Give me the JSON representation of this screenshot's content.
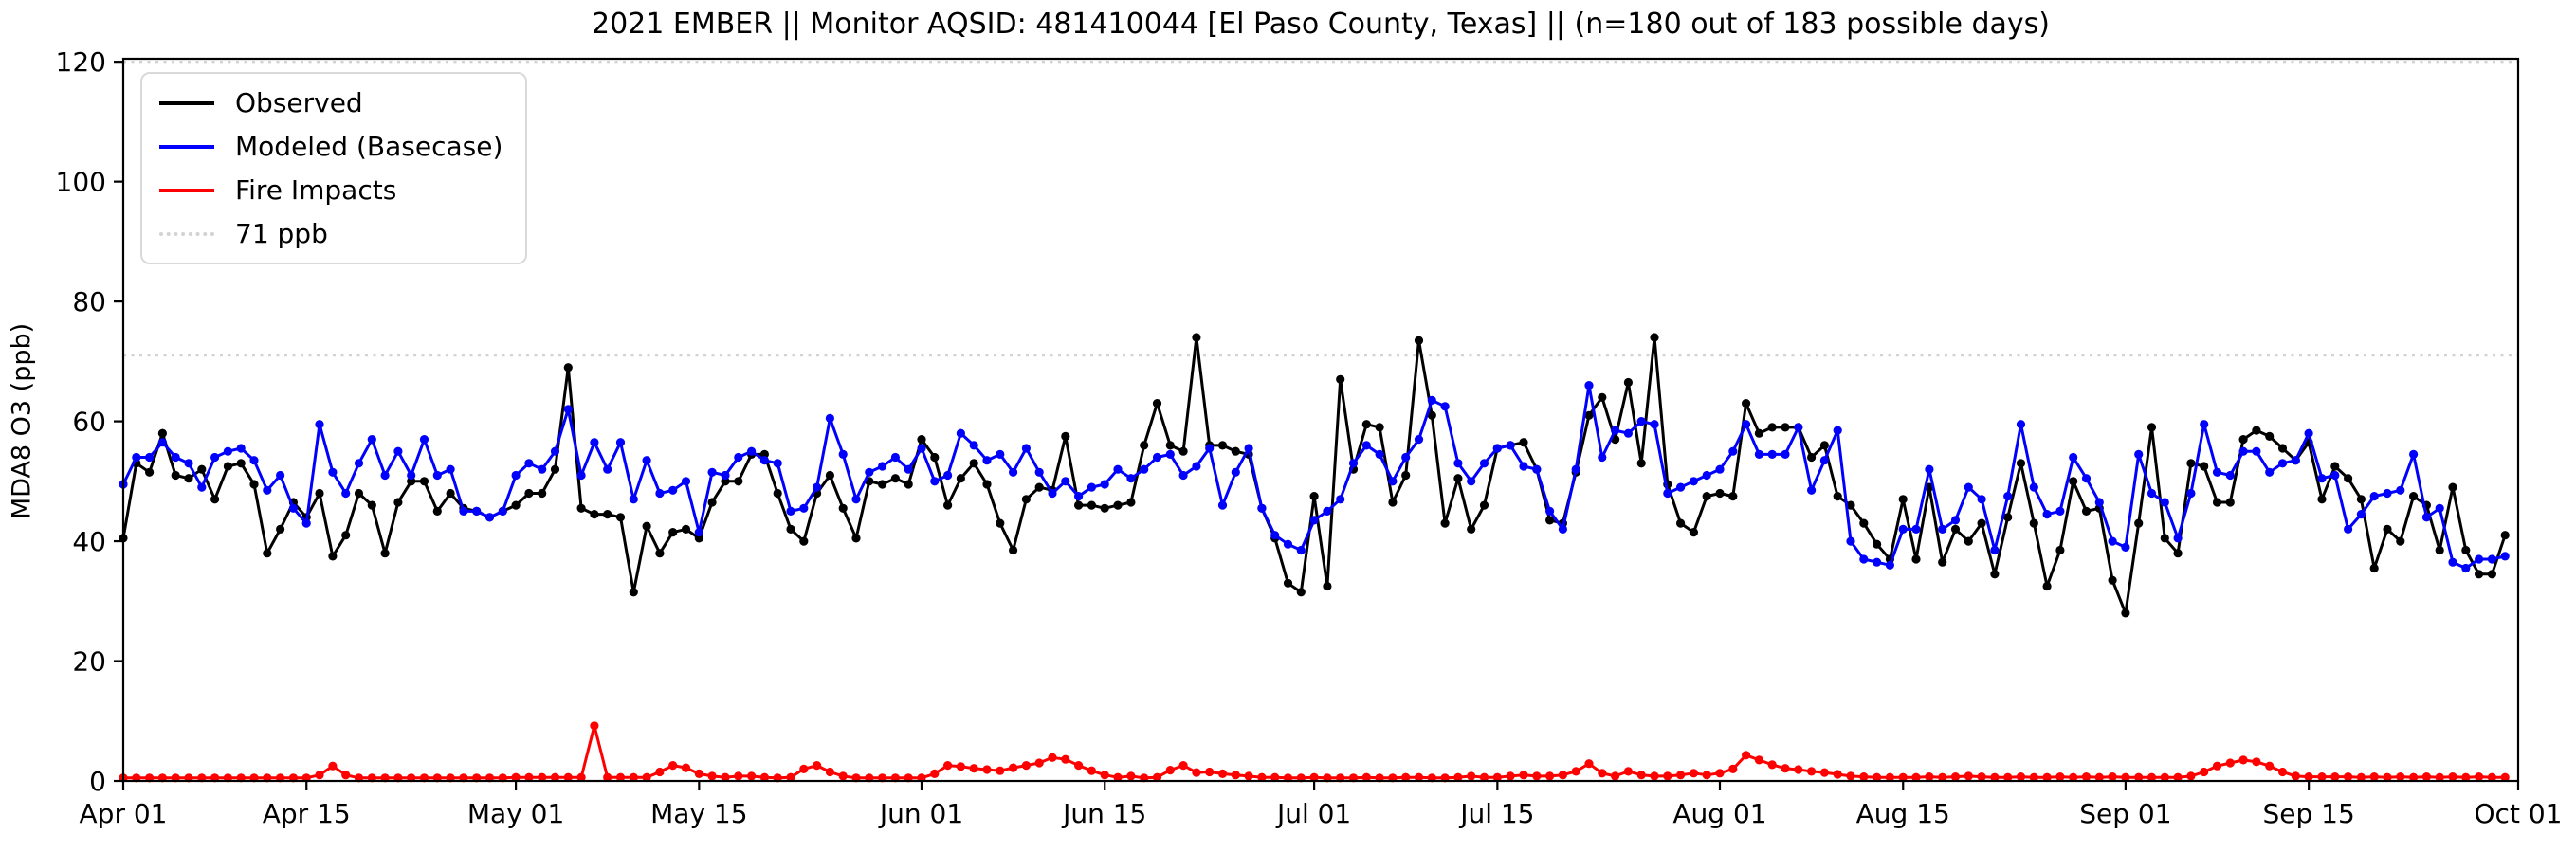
{
  "title": "2021 EMBER || Monitor AQSID: 481410044 [El Paso County, Texas] || (n=180 out of 183 possible days)",
  "axes": {
    "ylabel": "MDA8 O3 (ppb)",
    "yticks": [
      0,
      20,
      40,
      60,
      80,
      100,
      120
    ],
    "xticks": [
      {
        "label": "Apr 01",
        "day": 0
      },
      {
        "label": "Apr 15",
        "day": 14
      },
      {
        "label": "May 01",
        "day": 30
      },
      {
        "label": "May 15",
        "day": 44
      },
      {
        "label": "Jun 01",
        "day": 61
      },
      {
        "label": "Jun 15",
        "day": 75
      },
      {
        "label": "Jul 01",
        "day": 91
      },
      {
        "label": "Jul 15",
        "day": 105
      },
      {
        "label": "Aug 01",
        "day": 122
      },
      {
        "label": "Aug 15",
        "day": 136
      },
      {
        "label": "Sep 01",
        "day": 153
      },
      {
        "label": "Sep 15",
        "day": 167
      },
      {
        "label": "Oct 01",
        "day": 183
      }
    ]
  },
  "legend": {
    "items": [
      {
        "label": "Observed",
        "color": "#000000",
        "style": "solid"
      },
      {
        "label": "Modeled (Basecase)",
        "color": "#0000ff",
        "style": "solid"
      },
      {
        "label": "Fire Impacts",
        "color": "#ff0000",
        "style": "solid"
      },
      {
        "label": "71 ppb",
        "color": "#d3d3d3",
        "style": "dotted"
      }
    ]
  },
  "chart_data": {
    "type": "line",
    "title": "2021 EMBER || Monitor AQSID: 481410044 [El Paso County, Texas] || (n=180 out of 183 possible days)",
    "xlabel": "",
    "ylabel": "MDA8 O3 (ppb)",
    "x_start_date": "2021-04-01",
    "x_end_date": "2021-10-01",
    "x_unit": "days since Apr 01",
    "n_days": 183,
    "ylim": [
      0,
      120.5
    ],
    "grid": false,
    "legend_position": "upper left",
    "threshold_lines": [
      {
        "value": 71,
        "label": "71 ppb",
        "color": "#d3d3d3",
        "style": "dotted"
      },
      {
        "value": 120,
        "label": "",
        "color": "#d3d3d3",
        "style": "dotted"
      }
    ],
    "series": [
      {
        "name": "Observed",
        "color": "#000000",
        "marker": "circle",
        "values": [
          40.5,
          53,
          51.5,
          58,
          51,
          50.5,
          52,
          47,
          52.5,
          53,
          49.5,
          38,
          42,
          46.5,
          44,
          48,
          37.5,
          41,
          48,
          46,
          38,
          46.5,
          50,
          50,
          45,
          48,
          45.5,
          45,
          44,
          45,
          46,
          48,
          48,
          52,
          69,
          45.5,
          44.5,
          44.5,
          44,
          31.5,
          42.5,
          38,
          41.5,
          42,
          40.5,
          46.5,
          50,
          50,
          54.5,
          54.5,
          48,
          42,
          40,
          48,
          51,
          45.5,
          40.5,
          50,
          49.5,
          50.5,
          49.5,
          57,
          54,
          46,
          50.5,
          53,
          49.5,
          43,
          38.5,
          47,
          49,
          48.5,
          57.5,
          46,
          46,
          45.5,
          46,
          46.5,
          56,
          63,
          56,
          55,
          74,
          56,
          56,
          55,
          54.5,
          45.5,
          40.5,
          33,
          31.5,
          47.5,
          32.5,
          67,
          52,
          59.5,
          59,
          46.5,
          51,
          73.5,
          61,
          43,
          50.5,
          42,
          46,
          55.5,
          56,
          56.5,
          52,
          43.5,
          43,
          51.5,
          61,
          64,
          57,
          66.5,
          53,
          74,
          49.5,
          43,
          41.5,
          47.5,
          48,
          47.5,
          63,
          58,
          59,
          59,
          59,
          54,
          56,
          47.5,
          46,
          43,
          39.5,
          37,
          47,
          37,
          49,
          36.5,
          42,
          40,
          43,
          34.5,
          44,
          53,
          43,
          32.5,
          38.5,
          50,
          45,
          45.5,
          33.5,
          28,
          43,
          59,
          40.5,
          38,
          53,
          52.5,
          46.5,
          46.5,
          57,
          58.5,
          57.5,
          55.5,
          53.5,
          56.5,
          47,
          52.5,
          50.5,
          47,
          35.5,
          42,
          40,
          47.5,
          46,
          38.5,
          49,
          38.5,
          34.5,
          34.5,
          41
        ]
      },
      {
        "name": "Modeled (Basecase)",
        "color": "#0000ff",
        "marker": "circle",
        "values": [
          49.5,
          54,
          54,
          56.5,
          54,
          53,
          49,
          54,
          55,
          55.5,
          53.5,
          48.5,
          51,
          45.5,
          43,
          59.5,
          51.5,
          48,
          53,
          57,
          51,
          55,
          51,
          57,
          51,
          52,
          45,
          45,
          44,
          45,
          51,
          53,
          52,
          55,
          62,
          51,
          56.5,
          52,
          56.5,
          47,
          53.5,
          48,
          48.5,
          50,
          41.5,
          51.5,
          51,
          54,
          55,
          53.5,
          53,
          45,
          45.5,
          49,
          60.5,
          54.5,
          47,
          51.5,
          52.5,
          54,
          52,
          55.5,
          50,
          51,
          58,
          56,
          53.5,
          54.5,
          51.5,
          55.5,
          51.5,
          48,
          50,
          47.5,
          49,
          49.5,
          52,
          50.5,
          52,
          54,
          54.5,
          51,
          52.5,
          55.5,
          46,
          51.5,
          55.5,
          45.5,
          41,
          39.5,
          38.5,
          43.5,
          45,
          47,
          53,
          56,
          54.5,
          50,
          54,
          57,
          63.5,
          62.5,
          53,
          50,
          53,
          55.5,
          56,
          52.5,
          52,
          45,
          42,
          52,
          66,
          54,
          58.5,
          58,
          60,
          59.5,
          48,
          49,
          50,
          51,
          52,
          55,
          59.5,
          54.5,
          54.5,
          54.5,
          59,
          48.5,
          53.5,
          58.5,
          40,
          37,
          36.5,
          36,
          42,
          42,
          52,
          42,
          43.5,
          49,
          47,
          38.5,
          47.5,
          59.5,
          49,
          44.5,
          45,
          54,
          50.5,
          46.5,
          40,
          39,
          54.5,
          48,
          46.5,
          40.5,
          48,
          59.5,
          51.5,
          51,
          55,
          55,
          51.5,
          53,
          53.5,
          58,
          50.5,
          51,
          42,
          44.5,
          47.5,
          48,
          48.5,
          54.5,
          44,
          45.5,
          36.5,
          35.5,
          37,
          37,
          37.5
        ]
      },
      {
        "name": "Fire Impacts",
        "color": "#ff0000",
        "marker": "circle",
        "values": [
          0.5,
          0.5,
          0.5,
          0.5,
          0.5,
          0.5,
          0.5,
          0.5,
          0.5,
          0.5,
          0.5,
          0.5,
          0.5,
          0.5,
          0.5,
          1.0,
          2.5,
          1.0,
          0.5,
          0.5,
          0.5,
          0.5,
          0.5,
          0.5,
          0.5,
          0.5,
          0.5,
          0.5,
          0.5,
          0.5,
          0.6,
          0.6,
          0.6,
          0.6,
          0.6,
          0.6,
          9.2,
          0.6,
          0.6,
          0.6,
          0.6,
          1.5,
          2.6,
          2.2,
          1.2,
          0.8,
          0.6,
          0.8,
          0.8,
          0.6,
          0.5,
          0.6,
          2.0,
          2.6,
          1.5,
          0.8,
          0.5,
          0.5,
          0.5,
          0.5,
          0.5,
          0.5,
          1.2,
          2.6,
          2.4,
          2.1,
          1.9,
          1.7,
          2.2,
          2.6,
          3.0,
          3.9,
          3.6,
          2.6,
          1.7,
          1.0,
          0.6,
          0.8,
          0.5,
          0.6,
          1.8,
          2.6,
          1.4,
          1.5,
          1.2,
          1.0,
          0.8,
          0.6,
          0.6,
          0.5,
          0.5,
          0.6,
          0.5,
          0.5,
          0.5,
          0.6,
          0.5,
          0.5,
          0.6,
          0.6,
          0.5,
          0.5,
          0.6,
          0.8,
          0.6,
          0.6,
          0.8,
          1.0,
          0.8,
          0.8,
          1.0,
          1.6,
          2.9,
          1.3,
          0.8,
          1.6,
          1.0,
          0.8,
          0.8,
          1.0,
          1.3,
          1.0,
          1.3,
          2.0,
          4.3,
          3.5,
          2.7,
          2.1,
          1.9,
          1.6,
          1.4,
          1.1,
          0.8,
          0.7,
          0.6,
          0.6,
          0.6,
          0.6,
          0.7,
          0.6,
          0.7,
          0.8,
          0.7,
          0.6,
          0.6,
          0.7,
          0.6,
          0.6,
          0.7,
          0.6,
          0.7,
          0.6,
          0.7,
          0.6,
          0.6,
          0.6,
          0.6,
          0.6,
          0.8,
          1.5,
          2.5,
          3.0,
          3.5,
          3.2,
          2.5,
          1.5,
          0.8,
          0.7,
          0.7,
          0.7,
          0.7,
          0.6,
          0.7,
          0.6,
          0.7,
          0.6,
          0.7,
          0.6,
          0.7,
          0.6,
          0.7,
          0.6,
          0.6
        ]
      }
    ]
  }
}
